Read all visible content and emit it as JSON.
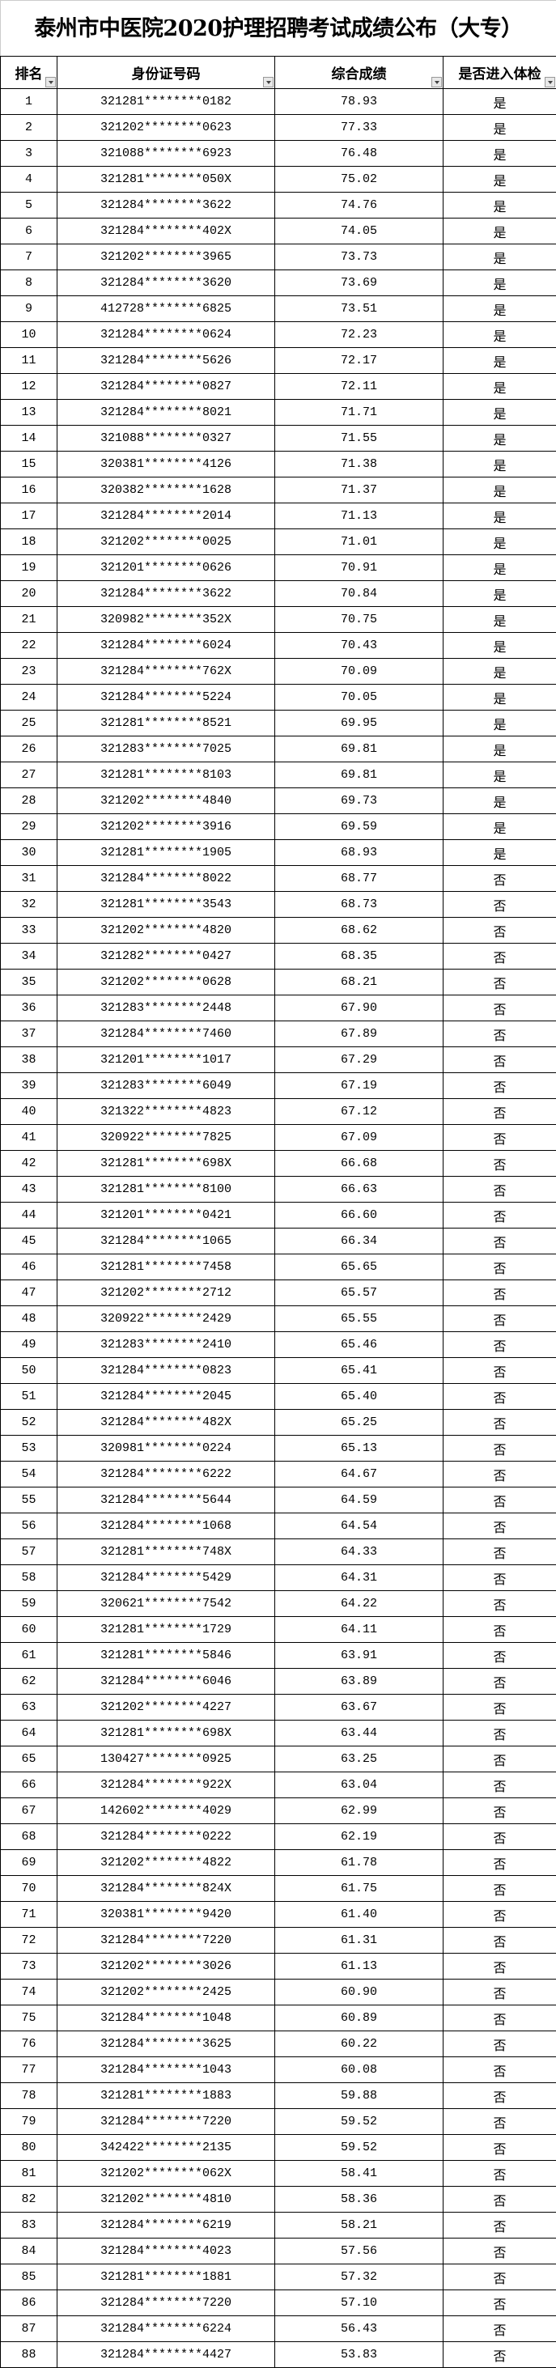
{
  "title": "泰州市中医院2020护理招聘考试成绩公布（大专）",
  "columns": [
    "排名",
    "身份证号码",
    "综合成绩",
    "是否进入体检"
  ],
  "rows": [
    [
      "1",
      "321281********0182",
      "78.93",
      "是"
    ],
    [
      "2",
      "321202********0623",
      "77.33",
      "是"
    ],
    [
      "3",
      "321088********6923",
      "76.48",
      "是"
    ],
    [
      "4",
      "321281********050X",
      "75.02",
      "是"
    ],
    [
      "5",
      "321284********3622",
      "74.76",
      "是"
    ],
    [
      "6",
      "321284********402X",
      "74.05",
      "是"
    ],
    [
      "7",
      "321202********3965",
      "73.73",
      "是"
    ],
    [
      "8",
      "321284********3620",
      "73.69",
      "是"
    ],
    [
      "9",
      "412728********6825",
      "73.51",
      "是"
    ],
    [
      "10",
      "321284********0624",
      "72.23",
      "是"
    ],
    [
      "11",
      "321284********5626",
      "72.17",
      "是"
    ],
    [
      "12",
      "321284********0827",
      "72.11",
      "是"
    ],
    [
      "13",
      "321284********8021",
      "71.71",
      "是"
    ],
    [
      "14",
      "321088********0327",
      "71.55",
      "是"
    ],
    [
      "15",
      "320381********4126",
      "71.38",
      "是"
    ],
    [
      "16",
      "320382********1628",
      "71.37",
      "是"
    ],
    [
      "17",
      "321284********2014",
      "71.13",
      "是"
    ],
    [
      "18",
      "321202********0025",
      "71.01",
      "是"
    ],
    [
      "19",
      "321201********0626",
      "70.91",
      "是"
    ],
    [
      "20",
      "321284********3622",
      "70.84",
      "是"
    ],
    [
      "21",
      "320982********352X",
      "70.75",
      "是"
    ],
    [
      "22",
      "321284********6024",
      "70.43",
      "是"
    ],
    [
      "23",
      "321284********762X",
      "70.09",
      "是"
    ],
    [
      "24",
      "321284********5224",
      "70.05",
      "是"
    ],
    [
      "25",
      "321281********8521",
      "69.95",
      "是"
    ],
    [
      "26",
      "321283********7025",
      "69.81",
      "是"
    ],
    [
      "27",
      "321281********8103",
      "69.81",
      "是"
    ],
    [
      "28",
      "321202********4840",
      "69.73",
      "是"
    ],
    [
      "29",
      "321202********3916",
      "69.59",
      "是"
    ],
    [
      "30",
      "321281********1905",
      "68.93",
      "是"
    ],
    [
      "31",
      "321284********8022",
      "68.77",
      "否"
    ],
    [
      "32",
      "321281********3543",
      "68.73",
      "否"
    ],
    [
      "33",
      "321202********4820",
      "68.62",
      "否"
    ],
    [
      "34",
      "321282********0427",
      "68.35",
      "否"
    ],
    [
      "35",
      "321202********0628",
      "68.21",
      "否"
    ],
    [
      "36",
      "321283********2448",
      "67.90",
      "否"
    ],
    [
      "37",
      "321284********7460",
      "67.89",
      "否"
    ],
    [
      "38",
      "321201********1017",
      "67.29",
      "否"
    ],
    [
      "39",
      "321283********6049",
      "67.19",
      "否"
    ],
    [
      "40",
      "321322********4823",
      "67.12",
      "否"
    ],
    [
      "41",
      "320922********7825",
      "67.09",
      "否"
    ],
    [
      "42",
      "321281********698X",
      "66.68",
      "否"
    ],
    [
      "43",
      "321281********8100",
      "66.63",
      "否"
    ],
    [
      "44",
      "321201********0421",
      "66.60",
      "否"
    ],
    [
      "45",
      "321284********1065",
      "66.34",
      "否"
    ],
    [
      "46",
      "321281********7458",
      "65.65",
      "否"
    ],
    [
      "47",
      "321202********2712",
      "65.57",
      "否"
    ],
    [
      "48",
      "320922********2429",
      "65.55",
      "否"
    ],
    [
      "49",
      "321283********2410",
      "65.46",
      "否"
    ],
    [
      "50",
      "321284********0823",
      "65.41",
      "否"
    ],
    [
      "51",
      "321284********2045",
      "65.40",
      "否"
    ],
    [
      "52",
      "321284********482X",
      "65.25",
      "否"
    ],
    [
      "53",
      "320981********0224",
      "65.13",
      "否"
    ],
    [
      "54",
      "321284********6222",
      "64.67",
      "否"
    ],
    [
      "55",
      "321284********5644",
      "64.59",
      "否"
    ],
    [
      "56",
      "321284********1068",
      "64.54",
      "否"
    ],
    [
      "57",
      "321281********748X",
      "64.33",
      "否"
    ],
    [
      "58",
      "321284********5429",
      "64.31",
      "否"
    ],
    [
      "59",
      "320621********7542",
      "64.22",
      "否"
    ],
    [
      "60",
      "321281********1729",
      "64.11",
      "否"
    ],
    [
      "61",
      "321281********5846",
      "63.91",
      "否"
    ],
    [
      "62",
      "321284********6046",
      "63.89",
      "否"
    ],
    [
      "63",
      "321202********4227",
      "63.67",
      "否"
    ],
    [
      "64",
      "321281********698X",
      "63.44",
      "否"
    ],
    [
      "65",
      "130427********0925",
      "63.25",
      "否"
    ],
    [
      "66",
      "321284********922X",
      "63.04",
      "否"
    ],
    [
      "67",
      "142602********4029",
      "62.99",
      "否"
    ],
    [
      "68",
      "321284********0222",
      "62.19",
      "否"
    ],
    [
      "69",
      "321202********4822",
      "61.78",
      "否"
    ],
    [
      "70",
      "321284********824X",
      "61.75",
      "否"
    ],
    [
      "71",
      "320381********9420",
      "61.40",
      "否"
    ],
    [
      "72",
      "321284********7220",
      "61.31",
      "否"
    ],
    [
      "73",
      "321202********3026",
      "61.13",
      "否"
    ],
    [
      "74",
      "321202********2425",
      "60.90",
      "否"
    ],
    [
      "75",
      "321284********1048",
      "60.89",
      "否"
    ],
    [
      "76",
      "321284********3625",
      "60.22",
      "否"
    ],
    [
      "77",
      "321284********1043",
      "60.08",
      "否"
    ],
    [
      "78",
      "321281********1883",
      "59.88",
      "否"
    ],
    [
      "79",
      "321284********7220",
      "59.52",
      "否"
    ],
    [
      "80",
      "342422********2135",
      "59.52",
      "否"
    ],
    [
      "81",
      "321202********062X",
      "58.41",
      "否"
    ],
    [
      "82",
      "321202********4810",
      "58.36",
      "否"
    ],
    [
      "83",
      "321284********6219",
      "58.21",
      "否"
    ],
    [
      "84",
      "321284********4023",
      "57.56",
      "否"
    ],
    [
      "85",
      "321281********1881",
      "57.32",
      "否"
    ],
    [
      "86",
      "321284********7220",
      "57.10",
      "否"
    ],
    [
      "87",
      "321284********6224",
      "56.43",
      "否"
    ],
    [
      "88",
      "321284********4427",
      "53.83",
      "否"
    ]
  ]
}
